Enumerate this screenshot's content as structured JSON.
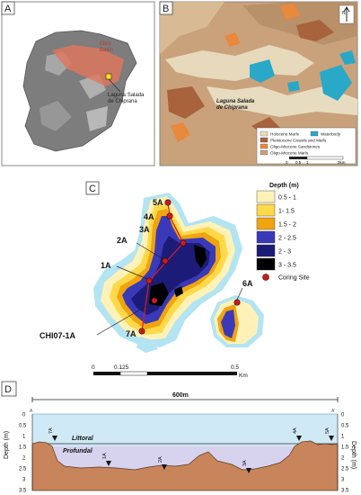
{
  "panels": {
    "a": "A",
    "b": "B",
    "c": "C",
    "d": "D"
  },
  "panel_a": {
    "basin_label_1": "Ebro",
    "basin_label_2": "Basin",
    "site_label_1": "Laguna Salada",
    "site_label_2": "de Chiprana"
  },
  "panel_b": {
    "site_label_1": "Laguna Salada",
    "site_label_2": "de Chiprana",
    "north": "N",
    "legend": [
      {
        "label": "Holocene Marls",
        "color": "#e8dcc0"
      },
      {
        "label": "Waterbody",
        "color": "#2aa8c8"
      },
      {
        "label": "Pleistocene Gravels and Marls",
        "color": "#a8623c"
      },
      {
        "label": "Oligo-Miocene Sandstones",
        "color": "#e8893c"
      },
      {
        "label": "Oligo-Miocene Marls",
        "color": "#c9a27c"
      }
    ],
    "scale": [
      "0",
      "0.5",
      "1",
      "2km"
    ]
  },
  "panel_c": {
    "legend_title": "Depth (m)",
    "legend": [
      {
        "label": "0.5 - 1",
        "color": "#fff2b8"
      },
      {
        "label": "1- 1.5",
        "color": "#ffd94a"
      },
      {
        "label": "1.5 - 2",
        "color": "#f0a410"
      },
      {
        "label": "2 - 2.5",
        "color": "#3a3ab8"
      },
      {
        "label": "2 - 3",
        "color": "#1c1c78"
      },
      {
        "label": "3 - 3.5",
        "color": "#000000"
      }
    ],
    "coring_label": "Coring Site",
    "sites": [
      "5A",
      "4A",
      "3A",
      "2A",
      "1A",
      "CHI07-1A",
      "7A",
      "6A"
    ],
    "scale": [
      "0",
      "0.125",
      "0.5",
      "Km"
    ]
  },
  "panel_d": {
    "distance_label": "600m",
    "end_left": "A",
    "end_right": "A'",
    "y_label": "Depth (m)",
    "y_ticks": [
      "0",
      "0.5",
      "1",
      "1.5",
      "2",
      "2.5",
      "3",
      "3.5"
    ],
    "zone_littoral": "Littoral",
    "zone_profundal": "Profundal",
    "cores": [
      "7A",
      "1A",
      "2A",
      "3A",
      "4A",
      "5A"
    ]
  }
}
